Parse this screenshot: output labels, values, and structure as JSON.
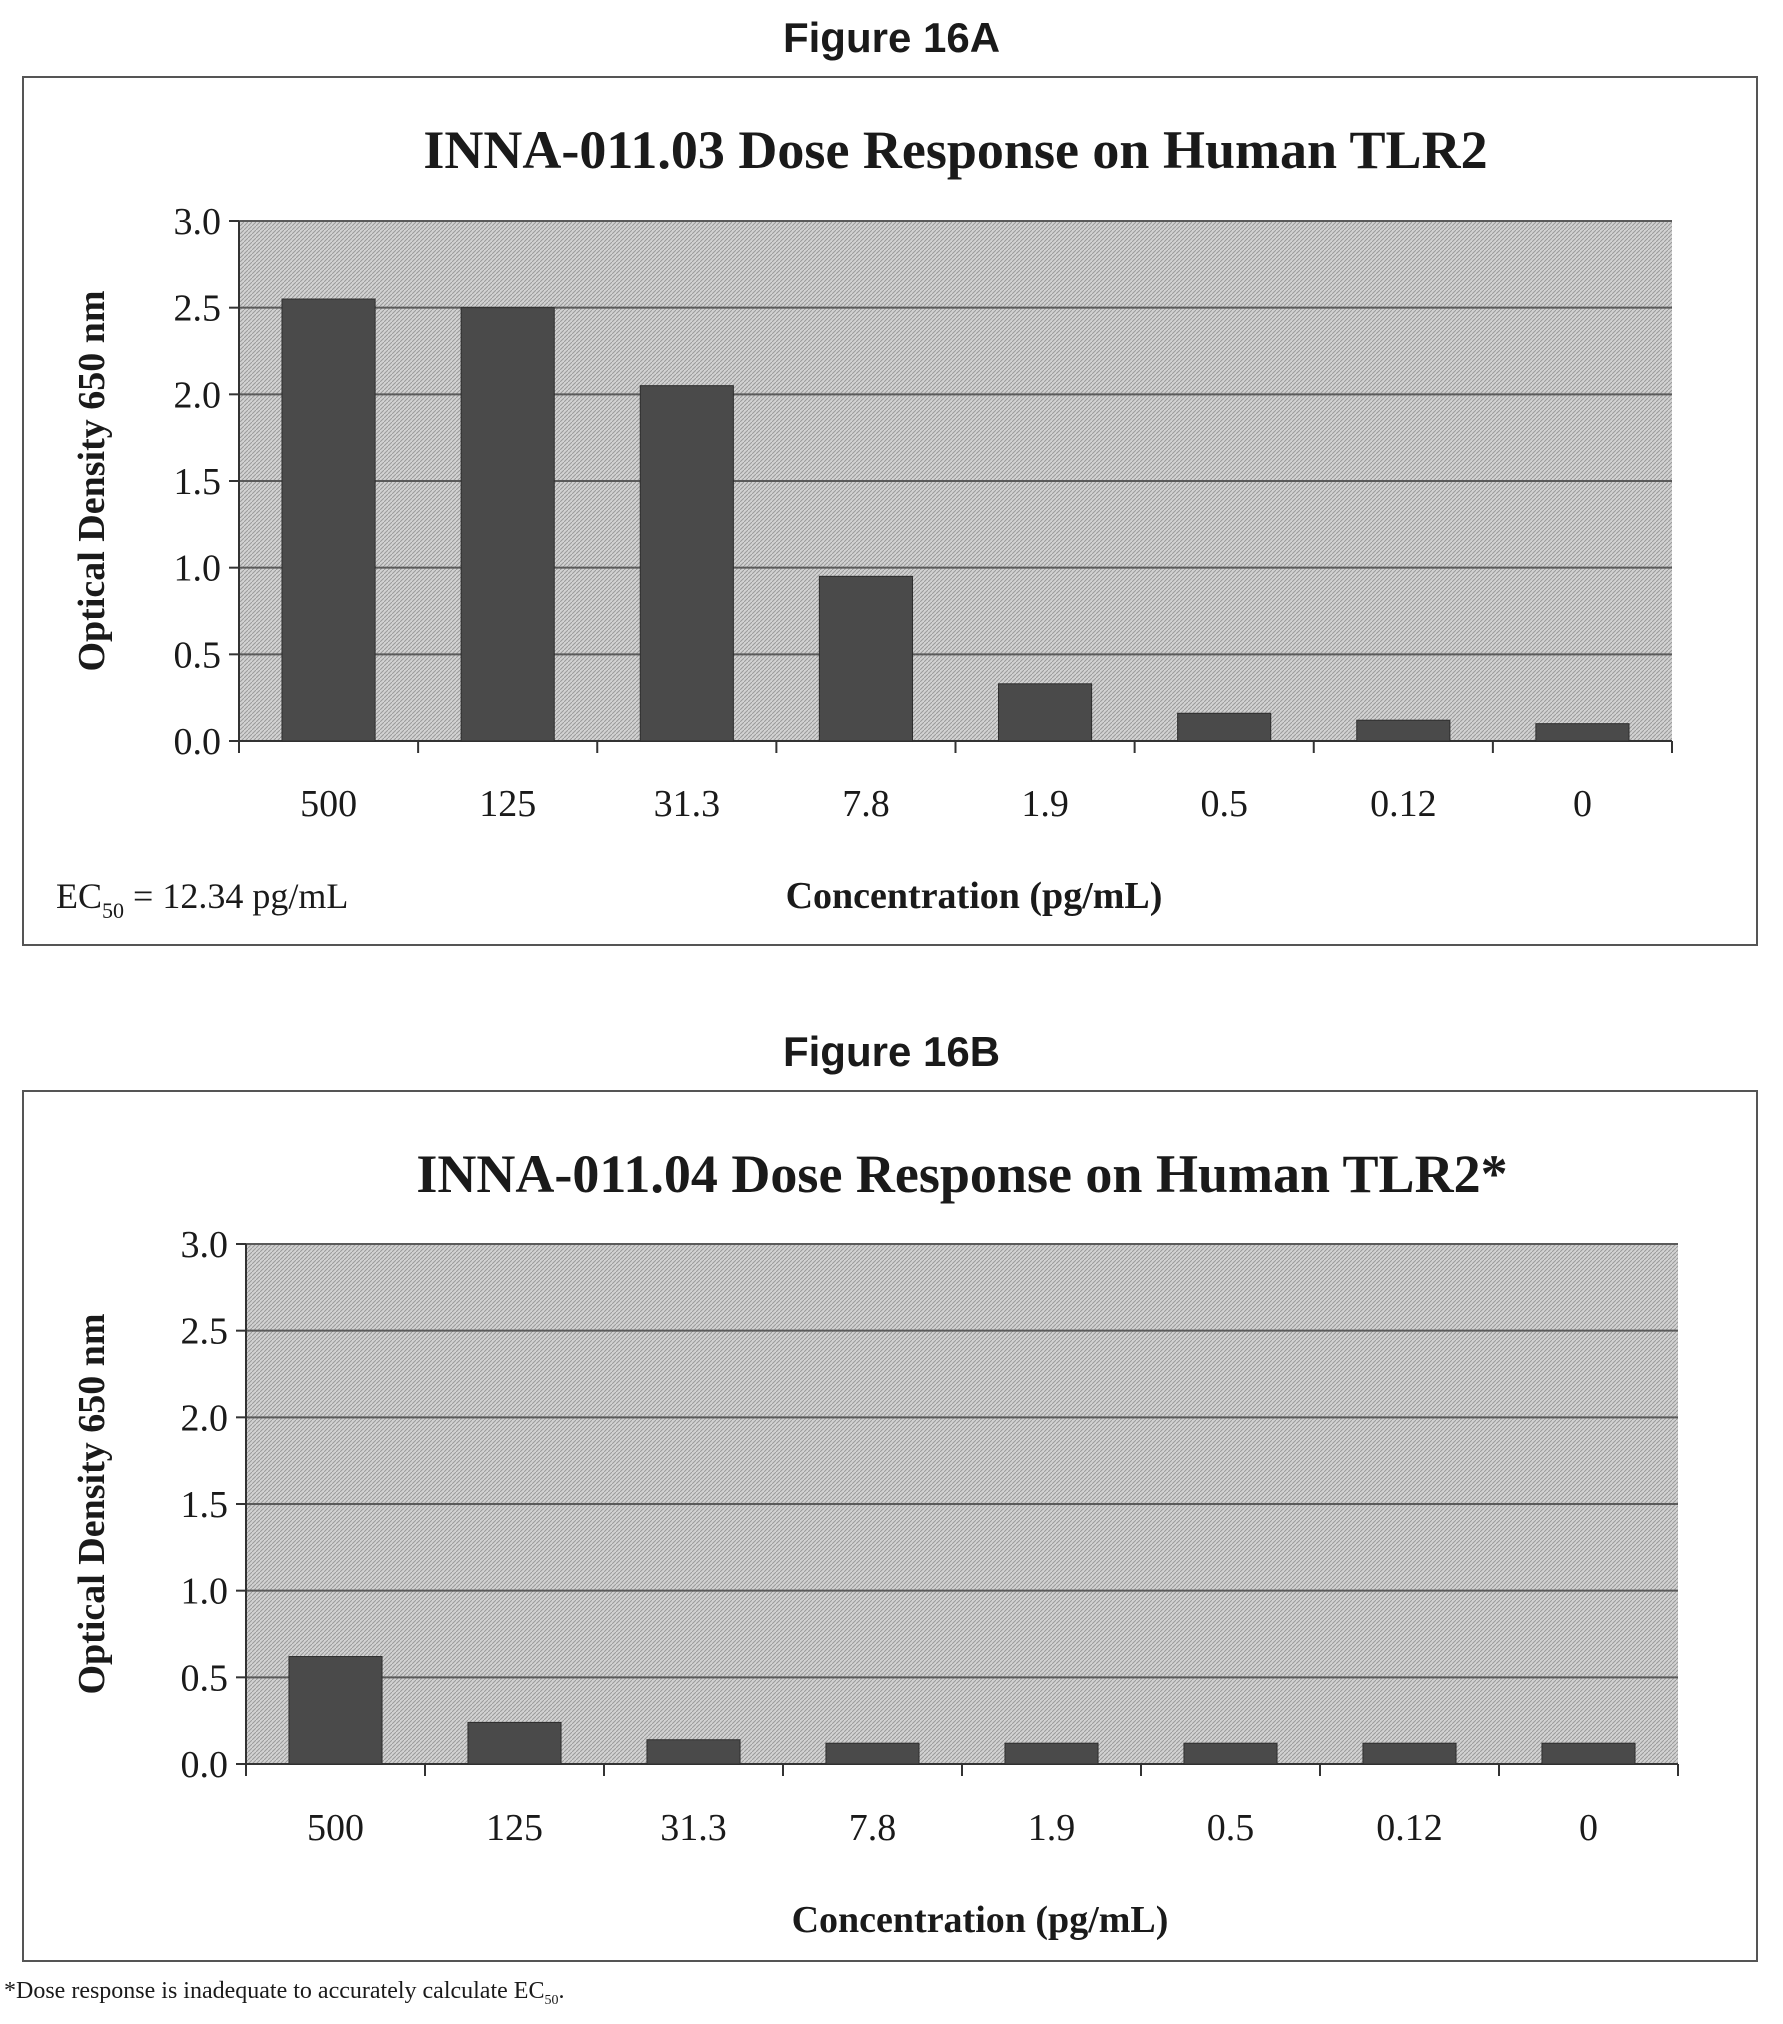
{
  "figures": [
    {
      "label": "Figure 16A"
    },
    {
      "label": "Figure 16B"
    }
  ],
  "colors": {
    "bar": "#4a4a4a",
    "plot_bg": "#d2d2d2",
    "grid": "#5a5a5a"
  },
  "chart_data": [
    {
      "type": "bar",
      "title": "INNA-011.03 Dose Response on Human TLR2",
      "xlabel": "Concentration (pg/mL)",
      "ylabel": "Optical Density 650 nm",
      "categories": [
        "500",
        "125",
        "31.3",
        "7.8",
        "1.9",
        "0.5",
        "0.12",
        "0"
      ],
      "values": [
        2.55,
        2.5,
        2.05,
        0.95,
        0.33,
        0.16,
        0.12,
        0.1
      ],
      "ylim": [
        0,
        3.0
      ],
      "yticks": [
        "0.0",
        "0.5",
        "1.0",
        "1.5",
        "2.0",
        "2.5",
        "3.0"
      ],
      "grid": true,
      "annotation": {
        "prefix": "EC",
        "sub": "50",
        "suffix": " = 12.34 pg/mL"
      }
    },
    {
      "type": "bar",
      "title": "INNA-011.04 Dose Response on Human TLR2*",
      "xlabel": "Concentration (pg/mL)",
      "ylabel": "Optical Density 650 nm",
      "categories": [
        "500",
        "125",
        "31.3",
        "7.8",
        "1.9",
        "0.5",
        "0.12",
        "0"
      ],
      "values": [
        0.62,
        0.24,
        0.14,
        0.12,
        0.12,
        0.12,
        0.12,
        0.12
      ],
      "ylim": [
        0,
        3.0
      ],
      "yticks": [
        "0.0",
        "0.5",
        "1.0",
        "1.5",
        "2.0",
        "2.5",
        "3.0"
      ],
      "grid": true
    }
  ],
  "footnote": {
    "prefix": "*Dose response is inadequate to accurately calculate EC",
    "sub": "50",
    "suffix": "."
  }
}
